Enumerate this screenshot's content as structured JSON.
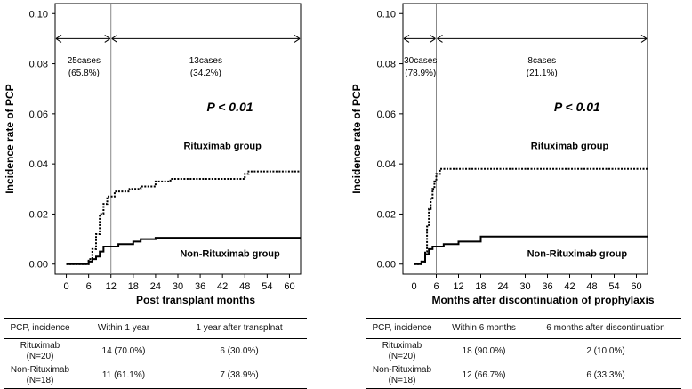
{
  "chart_data": [
    {
      "type": "line",
      "xlabel": "Post transplant months",
      "ylabel": "Incidence  rate of PCP",
      "xticks": [
        0,
        6,
        12,
        18,
        24,
        30,
        36,
        42,
        48,
        54,
        60
      ],
      "yticks": [
        "0.00",
        "0.02",
        "0.04",
        "0.06",
        "0.08",
        "0.10"
      ],
      "xlim": [
        -3,
        63
      ],
      "ylim": [
        -0.004,
        0.104
      ],
      "vline_x": 12,
      "pvalue": "P < 0.01",
      "left_span": {
        "cases": "25cases",
        "pct": "(65.8%)"
      },
      "right_span": {
        "cases": "13cases",
        "pct": "(34.2%)"
      },
      "labels": {
        "upper": "Rituximab group",
        "lower": "Non-Rituximab group"
      },
      "series": [
        {
          "name": "Rituximab group",
          "style": "dotted",
          "points": [
            [
              0,
              0
            ],
            [
              6,
              0.002
            ],
            [
              7,
              0.006
            ],
            [
              8,
              0.012
            ],
            [
              9,
              0.02
            ],
            [
              10,
              0.024
            ],
            [
              11,
              0.027
            ],
            [
              13,
              0.029
            ],
            [
              16,
              0.029
            ],
            [
              17,
              0.03
            ],
            [
              20,
              0.031
            ],
            [
              24,
              0.033
            ],
            [
              28,
              0.034
            ],
            [
              48,
              0.036
            ],
            [
              49,
              0.037
            ],
            [
              63,
              0.037
            ]
          ]
        },
        {
          "name": "Non-Rituximab group",
          "style": "solid",
          "points": [
            [
              0,
              0
            ],
            [
              6,
              0.001
            ],
            [
              7,
              0.002
            ],
            [
              8,
              0.003
            ],
            [
              9,
              0.005
            ],
            [
              10,
              0.007
            ],
            [
              12,
              0.007
            ],
            [
              14,
              0.008
            ],
            [
              18,
              0.009
            ],
            [
              20,
              0.01
            ],
            [
              24,
              0.0105
            ],
            [
              63,
              0.0105
            ]
          ]
        }
      ]
    },
    {
      "type": "line",
      "xlabel": "Months after discontinuation of prophylaxis",
      "ylabel": "Incidence rate of PCP",
      "xticks": [
        0,
        6,
        12,
        18,
        24,
        30,
        36,
        42,
        48,
        54,
        60
      ],
      "yticks": [
        "0.00",
        "0.02",
        "0.04",
        "0.06",
        "0.08",
        "0.10"
      ],
      "xlim": [
        -3,
        63
      ],
      "ylim": [
        -0.004,
        0.104
      ],
      "vline_x": 6,
      "pvalue": "P < 0.01",
      "left_span": {
        "cases": "30cases",
        "pct": "(78.9%)"
      },
      "right_span": {
        "cases": "8cases",
        "pct": "(21.1%)"
      },
      "labels": {
        "upper": "Rituximab group",
        "lower": "Non-Rituximab group"
      },
      "series": [
        {
          "name": "Rituximab group",
          "style": "dotted",
          "points": [
            [
              0,
              0
            ],
            [
              2,
              0.001
            ],
            [
              3,
              0.005
            ],
            [
              3.5,
              0.015
            ],
            [
              4,
              0.022
            ],
            [
              4.5,
              0.026
            ],
            [
              5,
              0.03
            ],
            [
              5.5,
              0.033
            ],
            [
              6,
              0.036
            ],
            [
              7,
              0.038
            ],
            [
              63,
              0.038
            ]
          ]
        },
        {
          "name": "Non-Rituximab group",
          "style": "solid",
          "points": [
            [
              0,
              0
            ],
            [
              2,
              0.001
            ],
            [
              3,
              0.004
            ],
            [
              4,
              0.006
            ],
            [
              5,
              0.007
            ],
            [
              8,
              0.008
            ],
            [
              12,
              0.009
            ],
            [
              18,
              0.011
            ],
            [
              63,
              0.011
            ]
          ]
        }
      ]
    }
  ],
  "tables": [
    {
      "headers": [
        "PCP, incidence",
        "Within 1 year",
        "1 year after transplnat"
      ],
      "rows": [
        {
          "group": "Rituximab",
          "n": "(N=20)",
          "a": "14 (70.0%)",
          "b": "6 (30.0%)"
        },
        {
          "group": "Non-Rituximab",
          "n": "(N=18)",
          "a": "11 (61.1%)",
          "b": "7 (38.9%)"
        }
      ]
    },
    {
      "headers": [
        "PCP, incidence",
        "Within 6 months",
        "6 months after discontinuation"
      ],
      "rows": [
        {
          "group": "Rituximab",
          "n": "(N=20)",
          "a": "18 (90.0%)",
          "b": "2 (10.0%)"
        },
        {
          "group": "Non-Rituximab",
          "n": "(N=18)",
          "a": "12 (66.7%)",
          "b": "6 (33.3%)"
        }
      ]
    }
  ]
}
